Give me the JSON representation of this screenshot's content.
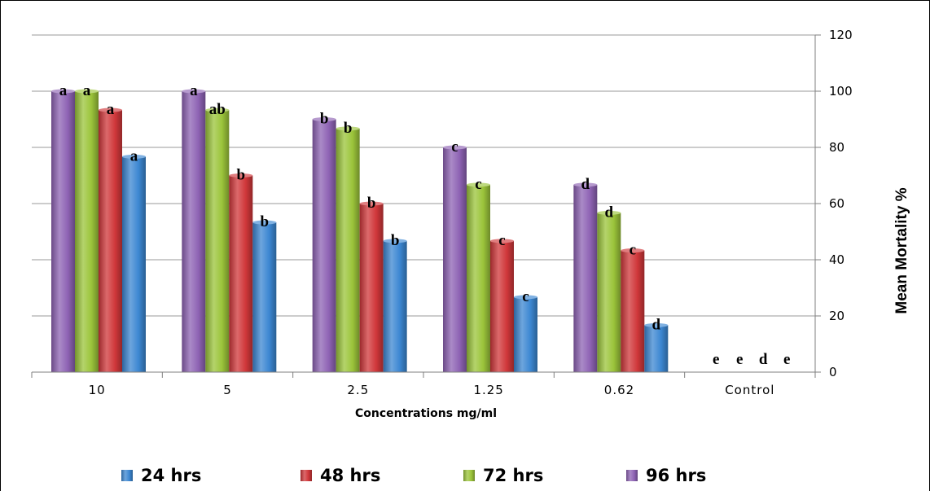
{
  "chart_data": {
    "type": "bar",
    "title": "",
    "xlabel": "Concentrations mg/ml",
    "ylabel": "Mean Mortality %",
    "ylim": [
      0,
      120
    ],
    "yticks": [
      0,
      20,
      40,
      60,
      80,
      100,
      120
    ],
    "grid": true,
    "legend_position": "bottom",
    "categories": [
      "10",
      "5",
      "2.5",
      "1.25",
      "0.62",
      "Control"
    ],
    "series": [
      {
        "name": "96 hrs",
        "color": "#8e63b4",
        "values": [
          100,
          100,
          90,
          80,
          66.7,
          0
        ],
        "letters": [
          "a",
          "a",
          "b",
          "c",
          "d",
          "e"
        ]
      },
      {
        "name": "72 hrs",
        "color": "#9bc43a",
        "values": [
          100,
          93.3,
          86.7,
          66.7,
          56.7,
          0
        ],
        "letters": [
          "a",
          "ab",
          "b",
          "c",
          "d",
          "e"
        ]
      },
      {
        "name": "48 hrs",
        "color": "#d0373a",
        "values": [
          93.3,
          70,
          60,
          46.7,
          43.3,
          0
        ],
        "letters": [
          "a",
          "b",
          "b",
          "c",
          "c",
          "d"
        ]
      },
      {
        "name": "24 hrs",
        "color": "#3c87d2",
        "values": [
          76.7,
          53.3,
          46.7,
          26.7,
          16.7,
          0
        ],
        "letters": [
          "a",
          "b",
          "b",
          "c",
          "d",
          "e"
        ]
      }
    ],
    "legend_order": [
      "24 hrs",
      "48 hrs",
      "72 hrs",
      "96 hrs"
    ]
  }
}
